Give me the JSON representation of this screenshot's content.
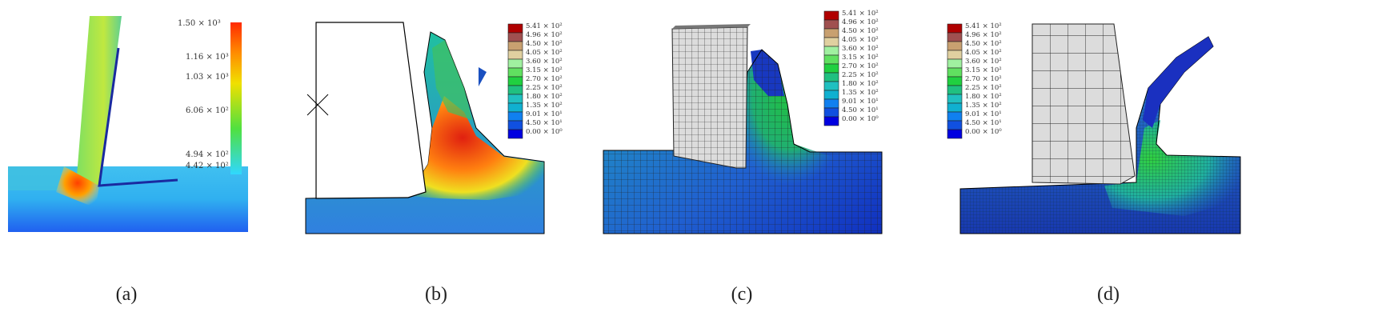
{
  "panels": [
    {
      "id": "a",
      "caption": "(a)",
      "legend": {
        "labels": [
          "1.50 × 10³",
          "1.16 × 10³",
          "1.03 × 10³",
          "6.06 × 10²",
          "4.94 × 10²",
          "4.42 × 10²"
        ],
        "colors": [
          "#ff2a00",
          "#ff8c00",
          "#f0e000",
          "#50e040",
          "#00e0c0",
          "#30d8ff"
        ]
      }
    },
    {
      "id": "b",
      "caption": "(b)",
      "legend": {
        "labels": [
          "5.41 × 10²",
          "4.96 × 10²",
          "4.50 × 10²",
          "4.05 × 10²",
          "3.60 × 10²",
          "3.15 × 10²",
          "2.70 × 10²",
          "2.25 × 10²",
          "1.80 × 10²",
          "1.35 × 10²",
          "9.01 × 10¹",
          "4.50 × 10¹",
          "0.00 × 10⁰"
        ]
      }
    },
    {
      "id": "c",
      "caption": "(c)",
      "legend": {
        "labels": [
          "5.41 × 10²",
          "4.96 × 10²",
          "4.50 × 10²",
          "4.05 × 10²",
          "3.60 × 10²",
          "3.15 × 10²",
          "2.70 × 10²",
          "2.25 × 10²",
          "1.80 × 10²",
          "1.35 × 10²",
          "9.01 × 10¹",
          "4.50 × 10¹",
          "0.00 × 10⁰"
        ]
      }
    },
    {
      "id": "d",
      "caption": "(d)",
      "legend": {
        "labels": [
          "5.41 × 10²",
          "4.96 × 10²",
          "4.50 × 10²",
          "4.05 × 10²",
          "3.60 × 10²",
          "3.15 × 10²",
          "2.70 × 10²",
          "2.25 × 10²",
          "1.80 × 10²",
          "1.35 × 10²",
          "9.01 × 10¹",
          "4.50 × 10¹",
          "0.00 × 10⁰"
        ]
      }
    }
  ],
  "legend_colors": [
    "#b00000",
    "#a05050",
    "#c8a070",
    "#e0d0a0",
    "#a0f0a0",
    "#60e060",
    "#20d040",
    "#20c080",
    "#20c0c0",
    "#10b0d0",
    "#1080f0",
    "#1050e0",
    "#0000e0"
  ],
  "colors": {
    "ground_blue": "#2a6ae0",
    "hot_red": "#e83020",
    "mesh_gray": "#dcdcdc"
  }
}
